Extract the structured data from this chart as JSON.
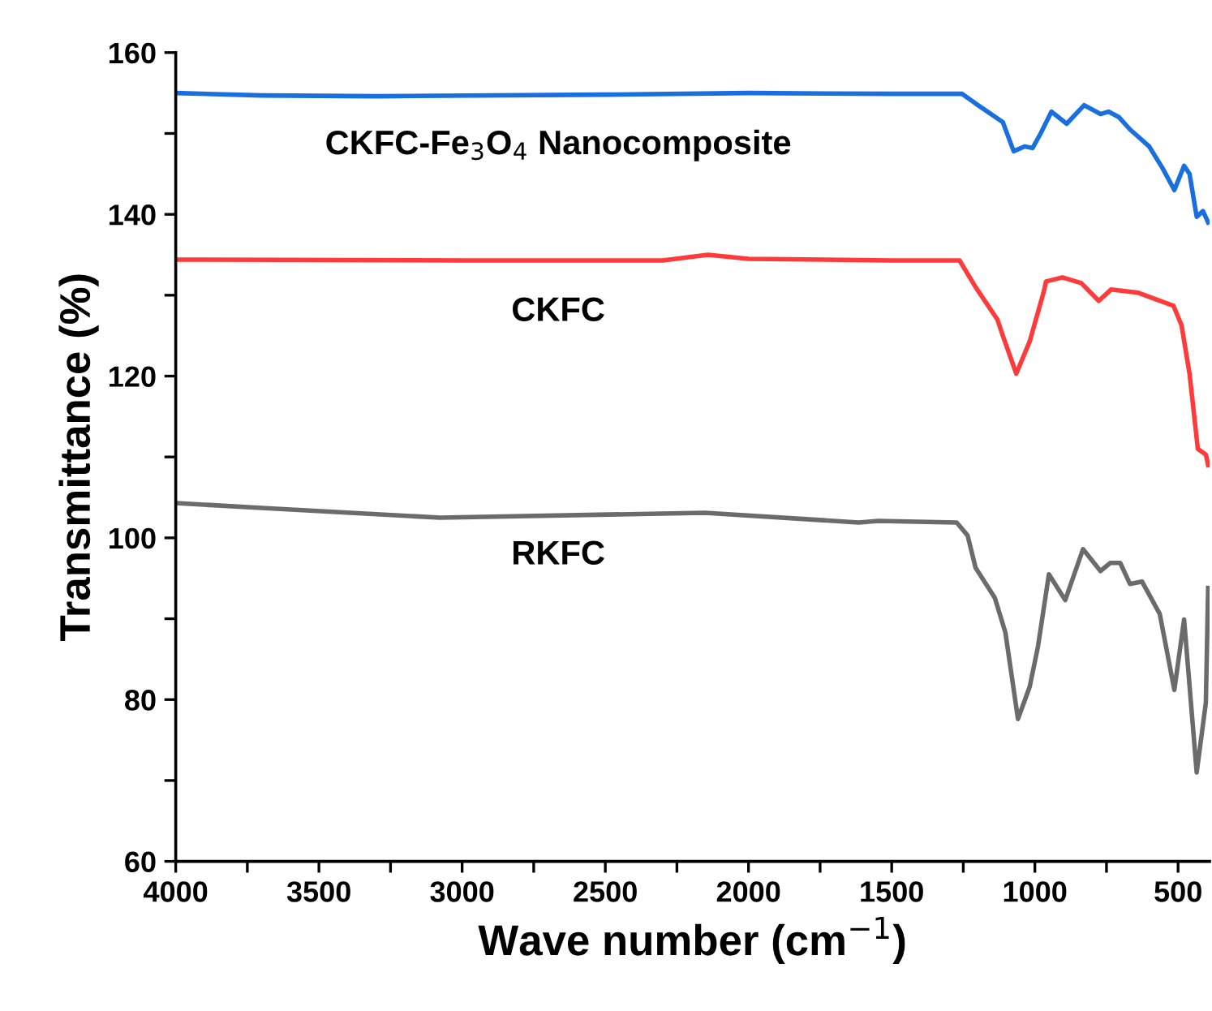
{
  "chart_data": {
    "type": "line",
    "xlabel": "Wave number (cm$^{−1}$)",
    "ylabel": "Transmittance (%)",
    "xlim": [
      4000,
      390
    ],
    "ylim": [
      60,
      160
    ],
    "xticks": [
      4000,
      {
        "value": 3750,
        "label": null
      },
      3500,
      {
        "value": 3250,
        "label": null
      },
      3000,
      {
        "value": 2750,
        "label": null
      },
      2500,
      {
        "value": 2250,
        "label": null
      },
      2000,
      {
        "value": 1750,
        "label": null
      },
      1500,
      {
        "value": 1250,
        "label": null
      },
      1000,
      {
        "value": 750,
        "label": null
      },
      500
    ],
    "yticks": [
      60,
      {
        "value": 70,
        "label": null
      },
      80,
      {
        "value": 90,
        "label": null
      },
      100,
      {
        "value": 110,
        "label": null
      },
      120,
      {
        "value": 130,
        "label": null
      },
      140,
      {
        "value": 150,
        "label": null
      },
      160
    ],
    "grid": false,
    "legend": false,
    "marker": "none",
    "line_style": "solid",
    "series": [
      {
        "name": "CKFC-Fe$_{3}$O$_{4}$ Nanocomposite",
        "color": "#1a6fdf",
        "x": [
          4000,
          3700,
          3300,
          2500,
          2000,
          1500,
          1254,
          1207,
          1112,
          1074,
          1036,
          1008,
          980,
          942,
          889,
          828,
          771,
          743,
          706,
          668,
          601,
          554,
          513,
          479,
          460,
          435,
          413,
          395
        ],
        "values": [
          155.0,
          154.7,
          154.6,
          154.8,
          155.0,
          154.9,
          154.9,
          153.7,
          151.4,
          147.8,
          148.4,
          148.2,
          150.0,
          152.7,
          151.2,
          153.5,
          152.4,
          152.7,
          152.0,
          150.5,
          148.4,
          145.7,
          143.0,
          146.0,
          145.0,
          139.7,
          140.4,
          139.0
        ]
      },
      {
        "name": "CKFC",
        "color": "#ff3a3a",
        "x": [
          4000,
          3000,
          2300,
          2142,
          2000,
          1500,
          1263,
          1207,
          1131,
          1112,
          1065,
          1018,
          970,
          961,
          904,
          838,
          777,
          734,
          639,
          516,
          488,
          460,
          431,
          403,
          395
        ],
        "values": [
          134.4,
          134.3,
          134.3,
          135.0,
          134.5,
          134.3,
          134.3,
          131.0,
          127.0,
          125.0,
          120.3,
          124.3,
          130.3,
          131.7,
          132.2,
          131.5,
          129.3,
          130.7,
          130.3,
          128.7,
          126.3,
          120.3,
          111.0,
          110.3,
          109.0
        ]
      },
      {
        "name": "RKFC",
        "color": "#6b6b6b",
        "x": [
          4000,
          3700,
          3078,
          2153,
          1615,
          1547,
          1273,
          1235,
          1207,
          1140,
          1103,
          1059,
          1018,
          989,
          951,
          894,
          832,
          771,
          737,
          702,
          668,
          626,
          564,
          513,
          479,
          435,
          403,
          395
        ],
        "values": [
          104.3,
          103.7,
          102.5,
          103.1,
          101.9,
          102.1,
          101.9,
          100.3,
          96.3,
          92.6,
          88.3,
          77.6,
          81.6,
          86.6,
          95.5,
          92.3,
          98.6,
          95.9,
          96.9,
          96.9,
          94.3,
          94.6,
          90.6,
          81.2,
          89.9,
          71.0,
          79.6,
          93.8
        ]
      }
    ]
  }
}
